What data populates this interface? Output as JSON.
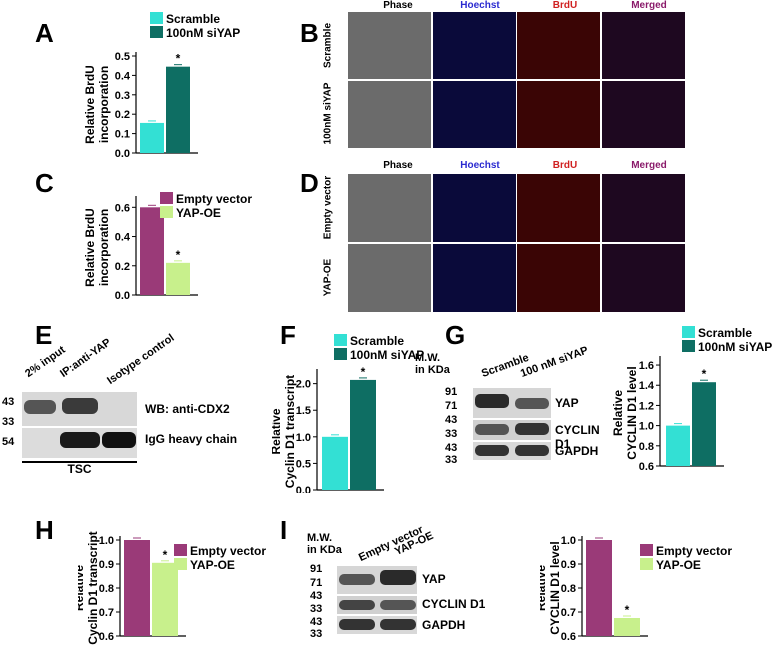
{
  "panels": {
    "A": "A",
    "B": "B",
    "C": "C",
    "D": "D",
    "E": "E",
    "F": "F",
    "G": "G",
    "H": "H",
    "I": "I"
  },
  "colors": {
    "scramble": "#33e0d4",
    "siyap": "#0e6e63",
    "empty": "#9a3a78",
    "yapoe": "#c8f08c",
    "hoechst_text": "#2a2ad0",
    "brdu_text": "#d02020",
    "merged_text": "#8a1a6a"
  },
  "micro_B": {
    "cols": [
      "Phase",
      "Hoechst",
      "BrdU",
      "Merged"
    ],
    "rows": [
      "Scramble",
      "100nM siYAP"
    ]
  },
  "micro_D": {
    "cols": [
      "Phase",
      "Hoechst",
      "BrdU",
      "Merged"
    ],
    "rows": [
      "Empty vector",
      "YAP-OE"
    ]
  },
  "blot_E": {
    "lanes": [
      "2% input",
      "IP:anti-YAP",
      "Isotype control"
    ],
    "mw": [
      "43",
      "33",
      "54"
    ],
    "bands": [
      "WB: anti-CDX2",
      "IgG heavy chain"
    ],
    "footer": "TSC"
  },
  "blot_G": {
    "mw_title_1": "M.W.",
    "mw_title_2": "in KDa",
    "lanes": [
      "Scramble",
      "100 nM siYAP"
    ],
    "mw": [
      "91",
      "71",
      "43",
      "33",
      "43",
      "33"
    ],
    "bands": [
      "YAP",
      "CYCLIN D1",
      "GAPDH"
    ]
  },
  "blot_I": {
    "mw_title_1": "M.W.",
    "mw_title_2": "in KDa",
    "lanes": [
      "Empty vector",
      "YAP-OE"
    ],
    "mw": [
      "91",
      "71",
      "43",
      "33",
      "43",
      "33"
    ],
    "bands": [
      "YAP",
      "CYCLIN D1",
      "GAPDH"
    ]
  },
  "chart_data": [
    {
      "panel": "A",
      "type": "bar",
      "categories": [
        "Scramble",
        "100nM siYAP"
      ],
      "values": [
        0.155,
        0.445
      ],
      "significance": [
        "",
        "*"
      ],
      "ylabel_lines": [
        "Relative BrdU",
        "incorporation"
      ],
      "ylim": [
        0,
        0.5
      ],
      "yticks": [
        "0.0",
        "0.1",
        "0.2",
        "0.3",
        "0.4",
        "0.5"
      ],
      "ytick_values": [
        0,
        0.1,
        0.2,
        0.3,
        0.4,
        0.5
      ],
      "legend": [
        "Scramble",
        "100nM siYAP"
      ]
    },
    {
      "panel": "C",
      "type": "bar",
      "categories": [
        "Empty vector",
        "YAP-OE"
      ],
      "values": [
        0.6,
        0.22
      ],
      "significance": [
        "",
        "*"
      ],
      "ylabel_lines": [
        "Relative BrdU",
        "incorporation"
      ],
      "ylim": [
        0,
        0.65
      ],
      "yticks": [
        "0.0",
        "0.2",
        "0.4",
        "0.6"
      ],
      "ytick_values": [
        0,
        0.2,
        0.4,
        0.6
      ],
      "legend": [
        "Empty vector",
        "YAP-OE"
      ]
    },
    {
      "panel": "F",
      "type": "bar",
      "categories": [
        "Scramble",
        "100nM siYAP"
      ],
      "values": [
        1.0,
        2.07
      ],
      "significance": [
        "",
        "*"
      ],
      "ylabel_lines": [
        "Relative",
        "Cyclin D1 transcript"
      ],
      "ylim": [
        0,
        2.2
      ],
      "yticks": [
        "0.0",
        "0.5",
        "1.0",
        "1.5",
        "2.0"
      ],
      "ytick_values": [
        0,
        0.5,
        1.0,
        1.5,
        2.0
      ],
      "legend": [
        "Scramble",
        "100nM siYAP"
      ]
    },
    {
      "panel": "G",
      "type": "bar",
      "categories": [
        "Scramble",
        "100nM siYAP"
      ],
      "values": [
        1.0,
        1.43
      ],
      "significance": [
        "",
        "*"
      ],
      "ylabel_lines": [
        "Relative",
        "CYCLIN D1 level"
      ],
      "ylim": [
        0.6,
        1.65
      ],
      "yticks": [
        "0.6",
        "0.8",
        "1.0",
        "1.2",
        "1.4",
        "1.6"
      ],
      "ytick_values": [
        0.6,
        0.8,
        1.0,
        1.2,
        1.4,
        1.6
      ],
      "legend": [
        "Scramble",
        "100nM siYAP"
      ]
    },
    {
      "panel": "H",
      "type": "bar",
      "categories": [
        "Empty vector",
        "YAP-OE"
      ],
      "values": [
        1.0,
        0.905
      ],
      "significance": [
        "",
        "*"
      ],
      "ylabel_lines": [
        "Relative",
        "Cyclin D1 transcript"
      ],
      "ylim": [
        0.6,
        1.0
      ],
      "yticks": [
        "0.6",
        "0.7",
        "0.8",
        "0.9",
        "1.0"
      ],
      "ytick_values": [
        0.6,
        0.7,
        0.8,
        0.9,
        1.0
      ],
      "legend": [
        "Empty vector",
        "YAP-OE"
      ]
    },
    {
      "panel": "I",
      "type": "bar",
      "categories": [
        "Empty vector",
        "YAP-OE"
      ],
      "values": [
        1.0,
        0.675
      ],
      "significance": [
        "",
        "*"
      ],
      "ylabel_lines": [
        "Relative",
        "CYCLIN D1 level"
      ],
      "ylim": [
        0.6,
        1.0
      ],
      "yticks": [
        "0.6",
        "0.7",
        "0.8",
        "0.9",
        "1.0"
      ],
      "ytick_values": [
        0.6,
        0.7,
        0.8,
        0.9,
        1.0
      ],
      "legend": [
        "Empty vector",
        "YAP-OE"
      ]
    }
  ]
}
